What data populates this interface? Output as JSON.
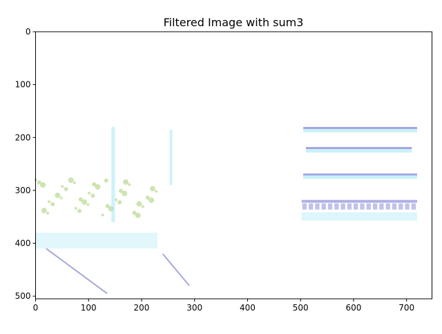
{
  "chart_data": {
    "type": "heatmap",
    "title": "Filtered Image with sum3",
    "xlabel": "",
    "ylabel": "",
    "xlim": [
      0,
      748
    ],
    "ylim": [
      505,
      0
    ],
    "x_ticks": [
      0,
      100,
      200,
      300,
      400,
      500,
      600,
      700
    ],
    "y_ticks": [
      0,
      100,
      200,
      300,
      400,
      500
    ],
    "grid": false,
    "image_description_colors": {
      "background": "#ffffff",
      "building_edges": "#8a8fd8",
      "building_glass": "#a8e8f4",
      "foliage": "#b8d890",
      "road_lines": "#7f84c8"
    },
    "features": [
      {
        "kind": "building-band",
        "x": [
          505,
          720
        ],
        "y": [
          180,
          200
        ]
      },
      {
        "kind": "building-band",
        "x": [
          510,
          710
        ],
        "y": [
          218,
          240
        ]
      },
      {
        "kind": "building-band",
        "x": [
          505,
          720
        ],
        "y": [
          268,
          290
        ]
      },
      {
        "kind": "building-windows",
        "x": [
          502,
          720
        ],
        "y": [
          318,
          365
        ]
      },
      {
        "kind": "foliage",
        "x": [
          0,
          230
        ],
        "y": [
          280,
          350
        ]
      },
      {
        "kind": "ground-band",
        "x": [
          0,
          230
        ],
        "y": [
          380,
          410
        ]
      },
      {
        "kind": "road-line",
        "x": [
          20,
          135
        ],
        "y": [
          410,
          495
        ]
      },
      {
        "kind": "road-line",
        "x": [
          240,
          290
        ],
        "y": [
          420,
          480
        ]
      },
      {
        "kind": "pole",
        "x": [
          143,
          150
        ],
        "y": [
          180,
          360
        ]
      },
      {
        "kind": "pole",
        "x": [
          253,
          258
        ],
        "y": [
          185,
          290
        ]
      }
    ]
  }
}
